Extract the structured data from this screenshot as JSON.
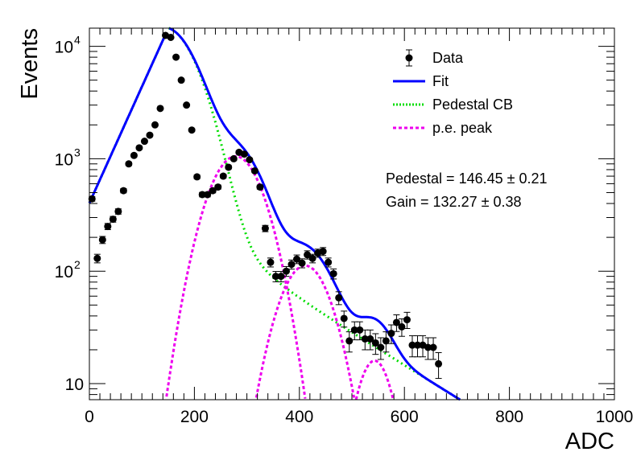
{
  "chart_data": {
    "type": "scatter",
    "xlabel": "ADC",
    "ylabel": "Events",
    "xlim": [
      0,
      1000
    ],
    "ylim": [
      7.2,
      14500
    ],
    "yscale": "log",
    "x_ticks": [
      {
        "v": 0,
        "label": "0"
      },
      {
        "v": 200,
        "label": "200"
      },
      {
        "v": 400,
        "label": "400"
      },
      {
        "v": 600,
        "label": "600"
      },
      {
        "v": 800,
        "label": "800"
      },
      {
        "v": 1000,
        "label": "1000"
      }
    ],
    "y_ticks": [
      {
        "v": 10,
        "label": "10"
      },
      {
        "v": 100,
        "label": "10",
        "sup": "2"
      },
      {
        "v": 1000,
        "label": "10",
        "sup": "3"
      },
      {
        "v": 10000,
        "label": "10",
        "sup": "4"
      }
    ],
    "legend": {
      "placement": "top-right",
      "entries": [
        {
          "key": "data",
          "label": "Data",
          "style": "marker",
          "color": "#000000"
        },
        {
          "key": "fit",
          "label": "Fit",
          "style": "solid",
          "color": "#0000ff"
        },
        {
          "key": "pedestal",
          "label": "Pedestal CB",
          "style": "dotted",
          "color": "#00dd00"
        },
        {
          "key": "pe",
          "label": "p.e. peak",
          "style": "dashed",
          "color": "#ee00ee"
        }
      ]
    },
    "annotations": [
      {
        "text": "Pedestal = 146.45",
        "pm": "±",
        "err": "0.21"
      },
      {
        "text": "Gain = 132.27",
        "pm": "±",
        "err": "0.38"
      }
    ],
    "series": [
      {
        "key": "data",
        "name": "Data",
        "points": [
          [
            5,
            440
          ],
          [
            15,
            130
          ],
          [
            25,
            190
          ],
          [
            35,
            250
          ],
          [
            45,
            290
          ],
          [
            55,
            340
          ],
          [
            65,
            520
          ],
          [
            75,
            900
          ],
          [
            85,
            1070
          ],
          [
            95,
            1250
          ],
          [
            105,
            1430
          ],
          [
            115,
            1620
          ],
          [
            125,
            2000
          ],
          [
            135,
            2800
          ],
          [
            145,
            12500
          ],
          [
            155,
            12000
          ],
          [
            165,
            8000
          ],
          [
            175,
            5000
          ],
          [
            185,
            3000
          ],
          [
            195,
            1800
          ],
          [
            205,
            690
          ],
          [
            215,
            480
          ],
          [
            225,
            480
          ],
          [
            235,
            520
          ],
          [
            245,
            560
          ],
          [
            255,
            700
          ],
          [
            265,
            840
          ],
          [
            275,
            1000
          ],
          [
            285,
            1140
          ],
          [
            295,
            1100
          ],
          [
            305,
            980
          ],
          [
            315,
            780
          ],
          [
            325,
            560
          ],
          [
            335,
            240
          ],
          [
            345,
            120
          ],
          [
            355,
            90
          ],
          [
            365,
            90
          ],
          [
            375,
            100
          ],
          [
            385,
            115
          ],
          [
            395,
            128
          ],
          [
            405,
            118
          ],
          [
            415,
            140
          ],
          [
            425,
            130
          ],
          [
            435,
            145
          ],
          [
            445,
            150
          ],
          [
            455,
            120
          ],
          [
            465,
            95
          ],
          [
            475,
            58
          ],
          [
            485,
            38
          ],
          [
            495,
            24
          ],
          [
            505,
            30
          ],
          [
            515,
            30
          ],
          [
            525,
            25
          ],
          [
            535,
            25
          ],
          [
            545,
            23
          ],
          [
            555,
            21
          ],
          [
            565,
            24
          ],
          [
            575,
            28
          ],
          [
            585,
            35
          ],
          [
            595,
            32
          ],
          [
            605,
            37
          ],
          [
            615,
            22
          ],
          [
            625,
            22
          ],
          [
            635,
            22
          ],
          [
            645,
            21
          ],
          [
            655,
            21
          ],
          [
            665,
            15
          ]
        ]
      }
    ]
  }
}
